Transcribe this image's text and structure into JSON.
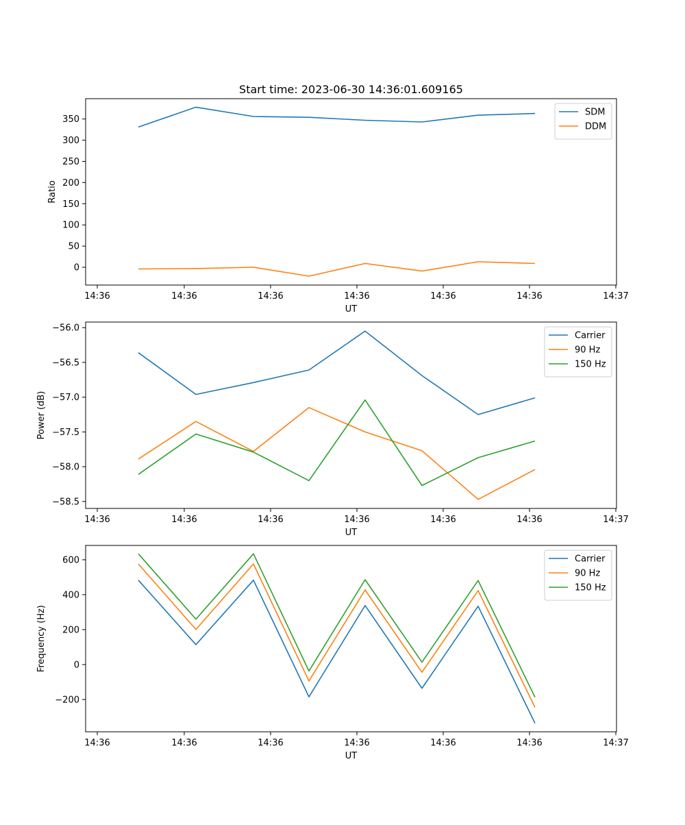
{
  "chart_data": [
    {
      "type": "line",
      "title": "Start time: 2023-06-30 14:36:01.609165",
      "xlabel": "UT",
      "ylabel": "Ratio",
      "x_ticks": [
        "14:36",
        "14:36",
        "14:36",
        "14:36",
        "14:36",
        "14:36",
        "14:37"
      ],
      "y_ticks": [
        "0",
        "50",
        "100",
        "150",
        "200",
        "250",
        "300",
        "350"
      ],
      "ylim": [
        -42,
        398
      ],
      "legend_position": "top-right",
      "series": [
        {
          "name": "SDM",
          "color": "#1f77b4",
          "values": [
            331,
            378,
            356,
            354,
            347,
            343,
            359,
            363
          ]
        },
        {
          "name": "DDM",
          "color": "#ff7f0e",
          "values": [
            -4,
            -3,
            0,
            -21,
            9,
            -9,
            13,
            9
          ]
        }
      ]
    },
    {
      "type": "line",
      "title": "",
      "xlabel": "UT",
      "ylabel": "Power (dB)",
      "x_ticks": [
        "14:36",
        "14:36",
        "14:36",
        "14:36",
        "14:36",
        "14:36",
        "14:37"
      ],
      "y_ticks": [
        "−56.0",
        "−56.5",
        "−57.0",
        "−57.5",
        "−58.0",
        "−58.5"
      ],
      "ylim": [
        -58.6,
        -55.92
      ],
      "legend_position": "top-right",
      "series": [
        {
          "name": "Carrier",
          "color": "#1f77b4",
          "values": [
            -56.36,
            -56.96,
            -56.79,
            -56.61,
            -56.05,
            -56.69,
            -57.25,
            -57.01
          ]
        },
        {
          "name": "90 Hz",
          "color": "#ff7f0e",
          "values": [
            -57.89,
            -57.35,
            -57.78,
            -57.15,
            -57.5,
            -57.77,
            -58.47,
            -58.04
          ]
        },
        {
          "name": "150 Hz",
          "color": "#2ca02c",
          "values": [
            -58.11,
            -57.53,
            -57.79,
            -58.2,
            -57.04,
            -58.27,
            -57.87,
            -57.63
          ]
        }
      ]
    },
    {
      "type": "line",
      "title": "",
      "xlabel": "UT",
      "ylabel": "Frequency (Hz)",
      "x_ticks": [
        "14:36",
        "14:36",
        "14:36",
        "14:36",
        "14:36",
        "14:36",
        "14:37"
      ],
      "y_ticks": [
        "−200",
        "0",
        "200",
        "400",
        "600"
      ],
      "ylim": [
        -385,
        682
      ],
      "legend_position": "top-right",
      "series": [
        {
          "name": "Carrier",
          "color": "#1f77b4",
          "values": [
            483,
            114,
            483,
            -185,
            338,
            -136,
            334,
            -336
          ]
        },
        {
          "name": "90 Hz",
          "color": "#ff7f0e",
          "values": [
            576,
            201,
            576,
            -94,
            427,
            -44,
            424,
            -245
          ]
        },
        {
          "name": "150 Hz",
          "color": "#2ca02c",
          "values": [
            634,
            260,
            634,
            -37,
            486,
            14,
            481,
            -187
          ]
        }
      ]
    }
  ]
}
